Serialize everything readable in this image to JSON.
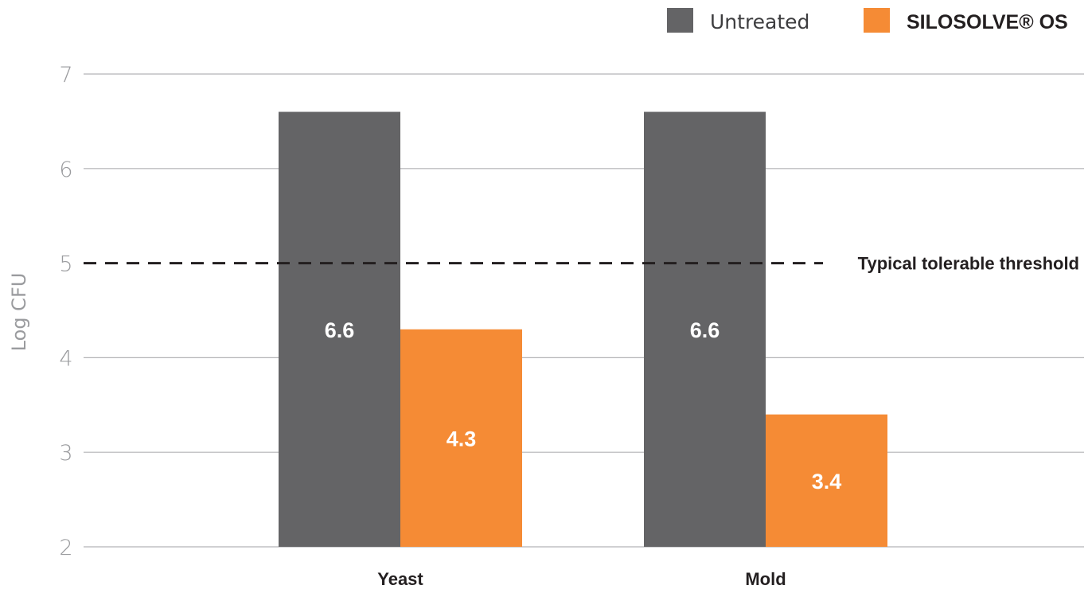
{
  "chart_data": {
    "type": "bar",
    "categories": [
      "Yeast",
      "Mold"
    ],
    "series": [
      {
        "name": "Untreated",
        "values": [
          6.6,
          6.6
        ],
        "color": "#646466"
      },
      {
        "name": "SILOSOLVE® OS",
        "values": [
          4.3,
          3.4
        ],
        "color": "#f58b35"
      }
    ],
    "value_labels": [
      [
        "6.6",
        "6.6"
      ],
      [
        "4.3",
        "3.4"
      ]
    ],
    "ylabel": "Log CFU",
    "xlabel": "",
    "ylim": [
      2,
      7
    ],
    "yticks": [
      2,
      3,
      4,
      5,
      6,
      7
    ],
    "grid": true,
    "legend_position": "top-right",
    "threshold": {
      "value": 5,
      "label": "Typical tolerable threshold"
    }
  }
}
